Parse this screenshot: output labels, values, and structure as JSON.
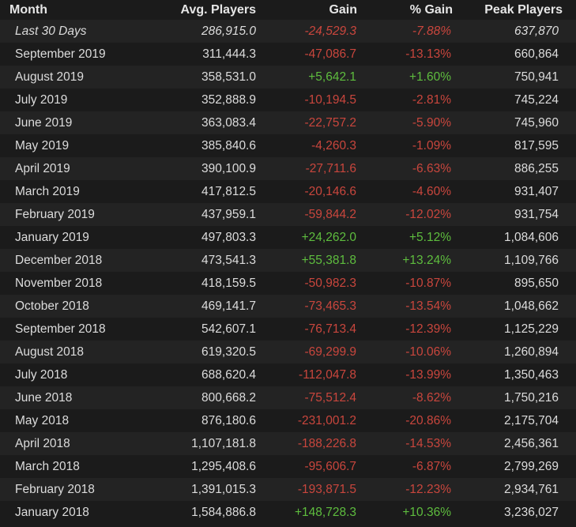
{
  "headers": {
    "month": "Month",
    "avg": "Avg. Players",
    "gain": "Gain",
    "pct": "% Gain",
    "peak": "Peak Players"
  },
  "colors": {
    "negative": "#c9463d",
    "positive": "#5ebd3e",
    "row_odd": "#232323",
    "row_even": "#1b1b1b"
  },
  "rows": [
    {
      "month": "Last 30 Days",
      "avg": "286,915.0",
      "gain": "-24,529.3",
      "pct": "-7.88%",
      "peak": "637,870",
      "trend": "neg",
      "summary": true
    },
    {
      "month": "September 2019",
      "avg": "311,444.3",
      "gain": "-47,086.7",
      "pct": "-13.13%",
      "peak": "660,864",
      "trend": "neg"
    },
    {
      "month": "August 2019",
      "avg": "358,531.0",
      "gain": "+5,642.1",
      "pct": "+1.60%",
      "peak": "750,941",
      "trend": "pos"
    },
    {
      "month": "July 2019",
      "avg": "352,888.9",
      "gain": "-10,194.5",
      "pct": "-2.81%",
      "peak": "745,224",
      "trend": "neg"
    },
    {
      "month": "June 2019",
      "avg": "363,083.4",
      "gain": "-22,757.2",
      "pct": "-5.90%",
      "peak": "745,960",
      "trend": "neg"
    },
    {
      "month": "May 2019",
      "avg": "385,840.6",
      "gain": "-4,260.3",
      "pct": "-1.09%",
      "peak": "817,595",
      "trend": "neg"
    },
    {
      "month": "April 2019",
      "avg": "390,100.9",
      "gain": "-27,711.6",
      "pct": "-6.63%",
      "peak": "886,255",
      "trend": "neg"
    },
    {
      "month": "March 2019",
      "avg": "417,812.5",
      "gain": "-20,146.6",
      "pct": "-4.60%",
      "peak": "931,407",
      "trend": "neg"
    },
    {
      "month": "February 2019",
      "avg": "437,959.1",
      "gain": "-59,844.2",
      "pct": "-12.02%",
      "peak": "931,754",
      "trend": "neg"
    },
    {
      "month": "January 2019",
      "avg": "497,803.3",
      "gain": "+24,262.0",
      "pct": "+5.12%",
      "peak": "1,084,606",
      "trend": "pos"
    },
    {
      "month": "December 2018",
      "avg": "473,541.3",
      "gain": "+55,381.8",
      "pct": "+13.24%",
      "peak": "1,109,766",
      "trend": "pos"
    },
    {
      "month": "November 2018",
      "avg": "418,159.5",
      "gain": "-50,982.3",
      "pct": "-10.87%",
      "peak": "895,650",
      "trend": "neg"
    },
    {
      "month": "October 2018",
      "avg": "469,141.7",
      "gain": "-73,465.3",
      "pct": "-13.54%",
      "peak": "1,048,662",
      "trend": "neg"
    },
    {
      "month": "September 2018",
      "avg": "542,607.1",
      "gain": "-76,713.4",
      "pct": "-12.39%",
      "peak": "1,125,229",
      "trend": "neg"
    },
    {
      "month": "August 2018",
      "avg": "619,320.5",
      "gain": "-69,299.9",
      "pct": "-10.06%",
      "peak": "1,260,894",
      "trend": "neg"
    },
    {
      "month": "July 2018",
      "avg": "688,620.4",
      "gain": "-112,047.8",
      "pct": "-13.99%",
      "peak": "1,350,463",
      "trend": "neg"
    },
    {
      "month": "June 2018",
      "avg": "800,668.2",
      "gain": "-75,512.4",
      "pct": "-8.62%",
      "peak": "1,750,216",
      "trend": "neg"
    },
    {
      "month": "May 2018",
      "avg": "876,180.6",
      "gain": "-231,001.2",
      "pct": "-20.86%",
      "peak": "2,175,704",
      "trend": "neg"
    },
    {
      "month": "April 2018",
      "avg": "1,107,181.8",
      "gain": "-188,226.8",
      "pct": "-14.53%",
      "peak": "2,456,361",
      "trend": "neg"
    },
    {
      "month": "March 2018",
      "avg": "1,295,408.6",
      "gain": "-95,606.7",
      "pct": "-6.87%",
      "peak": "2,799,269",
      "trend": "neg"
    },
    {
      "month": "February 2018",
      "avg": "1,391,015.3",
      "gain": "-193,871.5",
      "pct": "-12.23%",
      "peak": "2,934,761",
      "trend": "neg"
    },
    {
      "month": "January 2018",
      "avg": "1,584,886.8",
      "gain": "+148,728.3",
      "pct": "+10.36%",
      "peak": "3,236,027",
      "trend": "pos"
    }
  ]
}
